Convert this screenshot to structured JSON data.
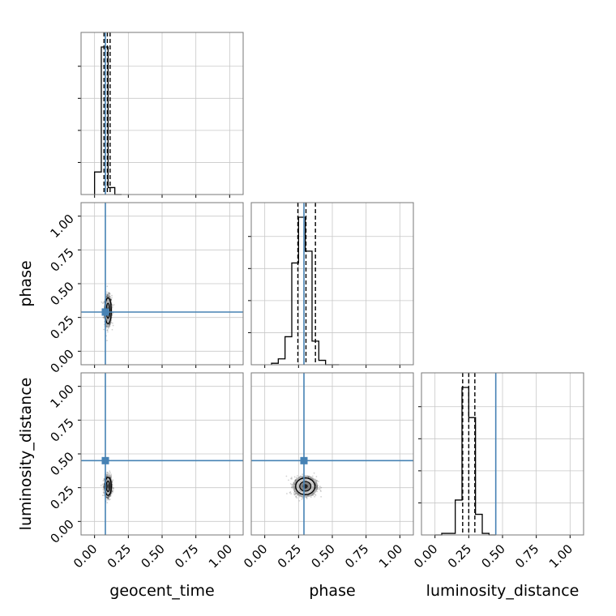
{
  "chart_data": {
    "type": "corner",
    "parameters": [
      "geocent_time",
      "phase",
      "luminosity_distance"
    ],
    "axis_range": [
      -0.1,
      1.1
    ],
    "tick_values": [
      0.0,
      0.25,
      0.5,
      0.75,
      1.0
    ],
    "tick_labels": [
      "0.00",
      "0.25",
      "0.50",
      "0.75",
      "1.00"
    ],
    "grid": true,
    "truth_values": {
      "geocent_time": 0.08,
      "phase": 0.29,
      "luminosity_distance": 0.45
    },
    "truth_color": "#4682b4",
    "histograms": {
      "geocent_time": {
        "bin_edges": [
          0.0,
          0.05,
          0.1,
          0.15,
          0.2
        ],
        "counts": [
          0.13,
          0.85,
          0.04,
          0.0
        ],
        "quantiles": [
          0.07,
          0.095,
          0.115
        ]
      },
      "phase": {
        "bin_edges": [
          0.05,
          0.1,
          0.15,
          0.2,
          0.25,
          0.3,
          0.35,
          0.4,
          0.45,
          0.5,
          0.55
        ],
        "counts": [
          0.01,
          0.04,
          0.19,
          0.69,
          1.0,
          0.77,
          0.16,
          0.03,
          0.0,
          0.0
        ],
        "quantiles": [
          0.245,
          0.305,
          0.375
        ]
      },
      "luminosity_distance": {
        "bin_edges": [
          0.0,
          0.05,
          0.1,
          0.15,
          0.2,
          0.25,
          0.3,
          0.35,
          0.4,
          0.45
        ],
        "counts": [
          0.0,
          0.01,
          0.01,
          0.22,
          0.93,
          0.74,
          0.13,
          0.01,
          0.0
        ],
        "quantiles": [
          0.205,
          0.25,
          0.295
        ]
      }
    },
    "scatter_2d": {
      "phase_vs_geocent_time": {
        "x_center": 0.1,
        "y_center": 0.3,
        "x_spread": 0.025,
        "y_spread": 0.1
      },
      "luminosity_distance_vs_geocent_time": {
        "x_center": 0.1,
        "y_center": 0.26,
        "x_spread": 0.025,
        "y_spread": 0.07
      },
      "luminosity_distance_vs_phase": {
        "x_center": 0.3,
        "y_center": 0.26,
        "x_spread": 0.075,
        "y_spread": 0.065
      }
    }
  }
}
